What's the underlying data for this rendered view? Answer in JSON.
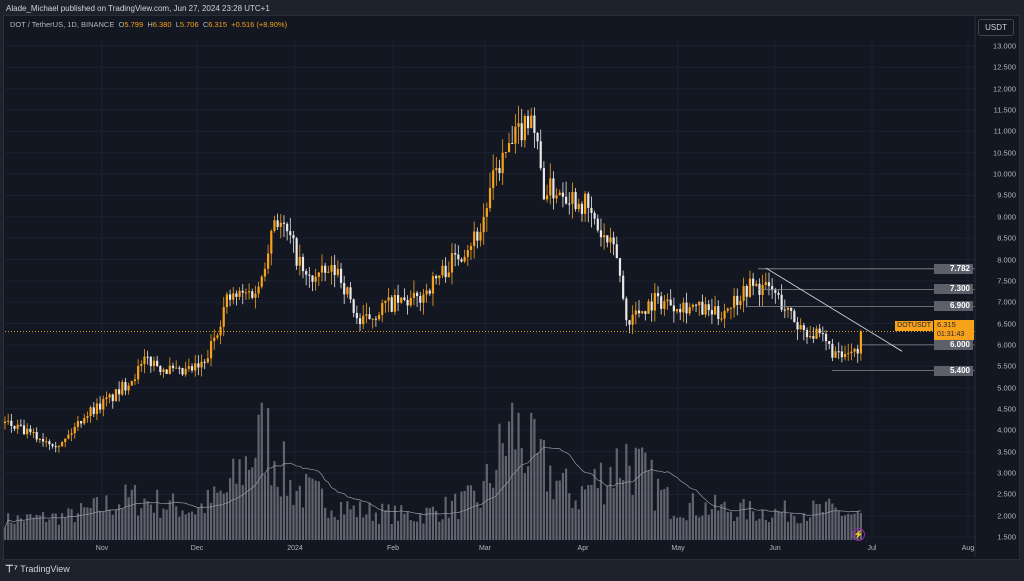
{
  "header": {
    "published": "Alade_Michael published on TradingView.com, Jun 27, 2024 23:28 UTC+1",
    "symbol": "DOT / TetherUS, 1D, BINANCE",
    "open_label": "O",
    "open": "5.799",
    "high_label": "H",
    "high": "6.380",
    "low_label": "L",
    "low": "5.706",
    "close_label": "C",
    "close": "6.315",
    "change": "+0.516 (+8.90%)"
  },
  "price_axis": {
    "currency": "USDT",
    "ticks": [
      "13.000",
      "12.500",
      "12.000",
      "11.500",
      "11.000",
      "10.500",
      "10.000",
      "9.500",
      "9.000",
      "8.500",
      "8.000",
      "7.500",
      "7.000",
      "6.500",
      "6.000",
      "5.500",
      "5.000",
      "4.500",
      "4.000",
      "3.500",
      "3.000",
      "2.500",
      "2.000",
      "1.500"
    ]
  },
  "time_axis": [
    "Nov",
    "Dec",
    "2024",
    "Feb",
    "Mar",
    "Apr",
    "May",
    "Jun",
    "Jul",
    "Aug"
  ],
  "level_tags": [
    "7.782",
    "7.300",
    "6.900",
    "6.000",
    "5.400"
  ],
  "current": {
    "symbol": "DOTUSDT",
    "price": "6.315",
    "countdown": "01:31:43"
  },
  "footer": {
    "brand_logo": "17",
    "brand": "TradingView"
  },
  "colors": {
    "up": "#f7a21b",
    "down": "#e8e8e8",
    "bg": "#131722",
    "volume": "#7c7f88",
    "accent": "#f7a21b"
  },
  "chart_data": {
    "type": "candlestick",
    "symbol": "DOTUSDT",
    "interval": "1D",
    "start_date": "2023-10-01",
    "close_anchors": [
      [
        0,
        4.17
      ],
      [
        10,
        3.84
      ],
      [
        18,
        3.68
      ],
      [
        25,
        4.36
      ],
      [
        35,
        4.83
      ],
      [
        45,
        5.65
      ],
      [
        55,
        5.3
      ],
      [
        63,
        5.53
      ],
      [
        70,
        7.05
      ],
      [
        80,
        7.3
      ],
      [
        85,
        9.04
      ],
      [
        90,
        8.45
      ],
      [
        95,
        7.52
      ],
      [
        105,
        7.75
      ],
      [
        112,
        6.47
      ],
      [
        120,
        6.93
      ],
      [
        130,
        7.05
      ],
      [
        140,
        7.87
      ],
      [
        150,
        8.69
      ],
      [
        155,
        10.1
      ],
      [
        160,
        10.68
      ],
      [
        166,
        11.5
      ],
      [
        170,
        9.63
      ],
      [
        176,
        9.63
      ],
      [
        183,
        9.28
      ],
      [
        188,
        8.57
      ],
      [
        193,
        8.1
      ],
      [
        196,
        6.58
      ],
      [
        205,
        7.05
      ],
      [
        215,
        6.93
      ],
      [
        225,
        6.7
      ],
      [
        235,
        7.4
      ],
      [
        242,
        7.28
      ],
      [
        250,
        6.47
      ],
      [
        258,
        6.11
      ],
      [
        263,
        5.69
      ],
      [
        267,
        5.76
      ],
      [
        269,
        5.799
      ],
      [
        270,
        6.315
      ]
    ],
    "volume_anchors_relative": [
      [
        0,
        0.12
      ],
      [
        20,
        0.15
      ],
      [
        40,
        0.3
      ],
      [
        60,
        0.2
      ],
      [
        70,
        0.35
      ],
      [
        82,
        0.85
      ],
      [
        90,
        0.4
      ],
      [
        110,
        0.2
      ],
      [
        130,
        0.15
      ],
      [
        150,
        0.3
      ],
      [
        160,
        0.9
      ],
      [
        168,
        0.6
      ],
      [
        180,
        0.3
      ],
      [
        196,
        0.65
      ],
      [
        210,
        0.25
      ],
      [
        240,
        0.18
      ],
      [
        260,
        0.2
      ],
      [
        270,
        0.15
      ]
    ],
    "horizontal_levels": [
      7.782,
      7.3,
      6.9,
      6.0,
      5.4
    ],
    "trendline": [
      [
        240,
        7.8
      ],
      [
        283,
        5.85
      ]
    ],
    "ylim": [
      1.5,
      13.0
    ]
  }
}
